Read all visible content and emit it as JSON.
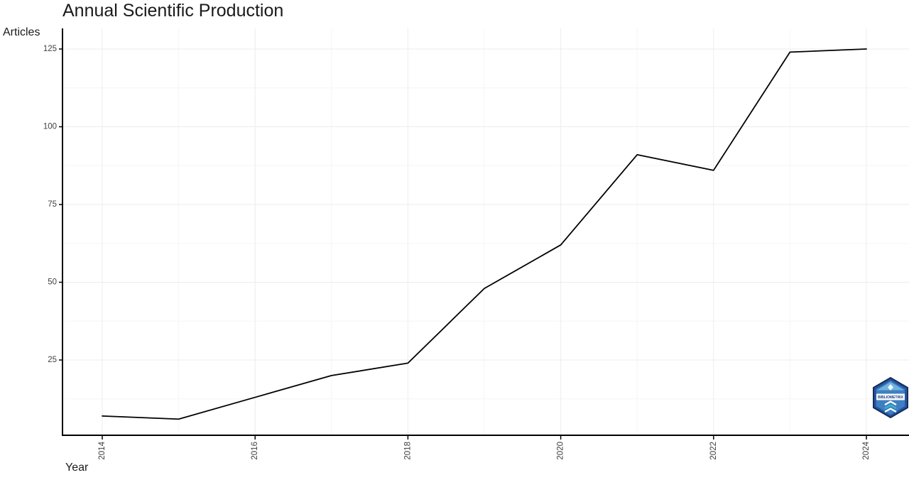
{
  "page": {
    "background": "#ffffff"
  },
  "chart_data": {
    "type": "line",
    "title": "Annual Scientific Production",
    "xlabel": "Year",
    "ylabel": "Articles",
    "x": [
      2014,
      2015,
      2016,
      2017,
      2018,
      2019,
      2020,
      2021,
      2022,
      2023,
      2024
    ],
    "values": [
      7,
      6,
      13,
      20,
      24,
      48,
      62,
      91,
      86,
      124,
      125
    ],
    "x_ticks": [
      2014,
      2016,
      2018,
      2020,
      2022,
      2024
    ],
    "y_ticks": [
      25,
      50,
      75,
      100,
      125
    ],
    "x_minor_ticks": [
      2015,
      2017,
      2019,
      2021,
      2023
    ],
    "y_minor_ticks": [
      12.5,
      37.5,
      62.5,
      87.5,
      112.5
    ],
    "xlim": [
      2013.5,
      2024.6
    ],
    "ylim": [
      0,
      131
    ],
    "grid": "on",
    "legend": "none",
    "x_tick_label_rotation_deg": -90,
    "colors": {
      "line": "#000000",
      "axis": "#000000",
      "major_grid": "#ececec",
      "minor_grid": "#f6f6f6",
      "tick_label": "#404040",
      "title_text": "#1a1a1a"
    }
  },
  "logo": {
    "name": "bibliometrix-logo",
    "text": "BIBLIOMETRIX",
    "colors": {
      "outer": "#2456a4",
      "border": "#162d56",
      "inner": "#3f7fc1",
      "roof": "#6fb3e0",
      "band": "#ffffff",
      "band_text": "#1d3f7e",
      "wave": "#35b8c9"
    }
  }
}
